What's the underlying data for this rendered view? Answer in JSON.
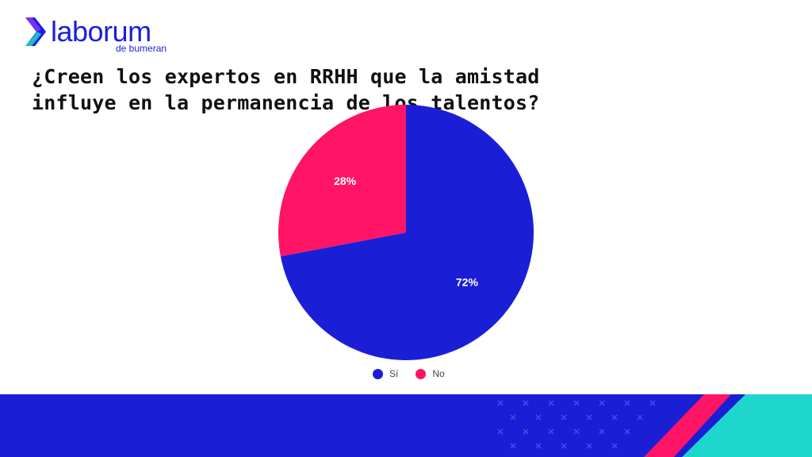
{
  "brand": {
    "name": "laborum",
    "sub": "de bumeran",
    "colors": {
      "blue": "#1a1fd6",
      "pink": "#ff1466",
      "teal": "#1fd6cf",
      "violet": "#7b2ff7"
    }
  },
  "title": "¿Creen los expertos en RRHH que la amistad influye en la permanencia de los talentos?",
  "chart_data": {
    "type": "pie",
    "title": "¿Creen los expertos en RRHH que la amistad influye en la permanencia de los talentos?",
    "slices": [
      {
        "label": "Sí",
        "value": 72,
        "display": "72%",
        "color": "#1a1fd6"
      },
      {
        "label": "No",
        "value": 28,
        "display": "28%",
        "color": "#ff1466"
      }
    ],
    "legend_position": "bottom"
  },
  "legend": [
    {
      "label": "Sí",
      "color": "#1a1fd6"
    },
    {
      "label": "No",
      "color": "#ff1466"
    }
  ]
}
